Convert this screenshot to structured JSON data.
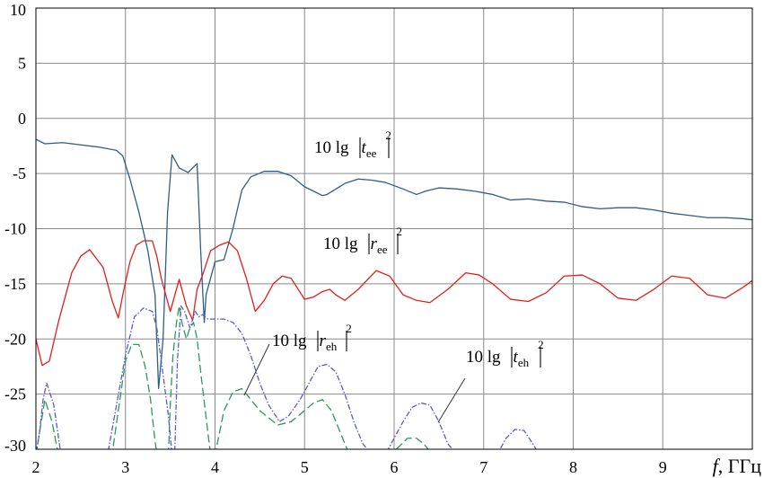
{
  "chart_data": {
    "type": "line",
    "title": "",
    "xlabel_italic": "f",
    "xlabel_rest": ", ГГц",
    "xlim": [
      2,
      10
    ],
    "ylim": [
      -30,
      10
    ],
    "xticks": [
      2,
      3,
      4,
      5,
      6,
      7,
      8,
      9
    ],
    "yticks": [
      10,
      5,
      0,
      -5,
      -10,
      -15,
      -20,
      -25,
      -30
    ],
    "grid": true,
    "series": [
      {
        "id": "tee",
        "color": "#2e5d87",
        "dash": "",
        "label": {
          "prefix": "10 lg",
          "var": "t",
          "sub": "ee",
          "sup": "2"
        },
        "x": [
          2.0,
          2.1,
          2.3,
          2.5,
          2.7,
          2.9,
          2.97,
          3.05,
          3.15,
          3.25,
          3.33,
          3.37,
          3.42,
          3.47,
          3.52,
          3.6,
          3.7,
          3.8,
          3.84,
          3.88,
          3.9,
          4.0,
          4.1,
          4.2,
          4.3,
          4.4,
          4.55,
          4.7,
          4.85,
          5.0,
          5.1,
          5.2,
          5.25,
          5.35,
          5.45,
          5.6,
          5.75,
          5.9,
          6.1,
          6.25,
          6.35,
          6.5,
          6.7,
          6.9,
          7.1,
          7.3,
          7.5,
          7.7,
          7.9,
          8.1,
          8.3,
          8.5,
          8.7,
          8.9,
          9.1,
          9.3,
          9.5,
          9.7,
          9.9,
          10.0
        ],
        "values": [
          -1.9,
          -2.3,
          -2.2,
          -2.4,
          -2.6,
          -2.9,
          -3.4,
          -5.5,
          -8.5,
          -12.0,
          -16.0,
          -24.5,
          -20.0,
          -8.5,
          -3.3,
          -4.5,
          -4.9,
          -4.1,
          -12.0,
          -18.5,
          -16.0,
          -13.0,
          -12.8,
          -10.0,
          -6.5,
          -5.3,
          -4.8,
          -4.8,
          -5.2,
          -6.2,
          -6.6,
          -7.0,
          -6.9,
          -6.4,
          -5.9,
          -5.5,
          -5.6,
          -5.8,
          -6.4,
          -6.9,
          -6.6,
          -6.3,
          -6.4,
          -6.6,
          -6.9,
          -7.4,
          -7.3,
          -7.5,
          -7.6,
          -8.0,
          -8.2,
          -8.1,
          -8.1,
          -8.3,
          -8.6,
          -8.8,
          -9.0,
          -9.0,
          -9.1,
          -9.2
        ]
      },
      {
        "id": "ree",
        "color": "#e0201c",
        "dash": "",
        "label": {
          "prefix": "10 lg",
          "var": "r",
          "sub": "ee",
          "sup": "2"
        },
        "x": [
          2.0,
          2.07,
          2.15,
          2.25,
          2.4,
          2.5,
          2.6,
          2.75,
          2.85,
          2.92,
          2.97,
          3.05,
          3.12,
          3.2,
          3.3,
          3.35,
          3.4,
          3.5,
          3.6,
          3.68,
          3.75,
          3.8,
          3.87,
          3.95,
          4.05,
          4.15,
          4.25,
          4.35,
          4.45,
          4.55,
          4.65,
          4.75,
          4.85,
          5.0,
          5.1,
          5.2,
          5.28,
          5.35,
          5.45,
          5.6,
          5.8,
          5.95,
          6.1,
          6.25,
          6.4,
          6.6,
          6.8,
          6.95,
          7.1,
          7.3,
          7.5,
          7.7,
          7.9,
          8.1,
          8.3,
          8.5,
          8.7,
          8.9,
          9.1,
          9.3,
          9.5,
          9.7,
          9.9,
          10.0
        ],
        "values": [
          -20.0,
          -22.4,
          -22.0,
          -18.5,
          -14.0,
          -12.5,
          -11.9,
          -13.5,
          -16.5,
          -18.1,
          -16.0,
          -13.0,
          -11.5,
          -11.1,
          -11.1,
          -12.5,
          -14.5,
          -17.5,
          -14.6,
          -17.0,
          -18.3,
          -15.5,
          -14.0,
          -12.0,
          -11.5,
          -11.2,
          -12.0,
          -14.5,
          -17.5,
          -16.5,
          -15.0,
          -14.3,
          -14.5,
          -16.4,
          -16.2,
          -15.7,
          -15.5,
          -16.0,
          -16.5,
          -15.5,
          -13.8,
          -14.3,
          -16.0,
          -16.5,
          -16.7,
          -15.5,
          -14.0,
          -14.2,
          -15.0,
          -16.4,
          -16.6,
          -15.8,
          -14.3,
          -14.2,
          -15.0,
          -16.3,
          -16.5,
          -15.5,
          -14.3,
          -14.5,
          -16.0,
          -16.3,
          -15.3,
          -14.7
        ]
      },
      {
        "id": "reh",
        "color": "#2a9a58",
        "dash": "9 4",
        "label": {
          "prefix": "10 lg",
          "var": "r",
          "sub": "eh",
          "sup": "2"
        },
        "x": [
          2.0,
          2.05,
          2.1,
          2.18,
          2.25,
          2.85,
          2.92,
          3.0,
          3.07,
          3.15,
          3.22,
          3.28,
          3.32,
          3.35,
          3.48,
          3.5,
          3.53,
          3.57,
          3.6,
          3.63,
          3.68,
          3.72,
          3.76,
          3.8,
          3.84,
          3.95,
          4.0,
          4.1,
          4.2,
          4.3,
          4.5,
          4.7,
          4.85,
          5.0,
          5.1,
          5.2,
          5.3,
          5.4,
          5.5,
          5.6,
          5.7,
          5.95,
          6.05,
          6.15,
          6.25,
          6.33,
          6.4,
          6.45
        ],
        "values": [
          -30.5,
          -28.0,
          -25.5,
          -27.5,
          -30.5,
          -30.5,
          -26.5,
          -22.0,
          -20.5,
          -20.5,
          -22.5,
          -25.5,
          -28.5,
          -30.5,
          -30.5,
          -26.0,
          -21.5,
          -18.5,
          -17.0,
          -18.5,
          -20.0,
          -19.0,
          -18.5,
          -20.0,
          -23.0,
          -30.5,
          -30.5,
          -26.5,
          -24.8,
          -24.5,
          -26.5,
          -27.8,
          -27.5,
          -26.5,
          -25.8,
          -25.5,
          -26.5,
          -28.5,
          -30.5,
          -30.5,
          -30.5,
          -30.5,
          -29.8,
          -29.0,
          -29.0,
          -29.5,
          -30.2,
          -30.5
        ]
      },
      {
        "id": "teh",
        "color": "#5a5ac8",
        "dash": "6 2 1.5 2",
        "label": {
          "prefix": "10 lg",
          "var": "t",
          "sub": "eh",
          "sup": "2"
        },
        "x": [
          2.0,
          2.04,
          2.08,
          2.12,
          2.2,
          2.28,
          2.8,
          2.9,
          3.0,
          3.1,
          3.2,
          3.3,
          3.35,
          3.4,
          3.48,
          3.52,
          3.55,
          3.58,
          3.62,
          3.66,
          3.72,
          3.78,
          3.82,
          3.86,
          3.92,
          4.0,
          4.1,
          4.2,
          4.3,
          4.4,
          4.5,
          4.6,
          4.72,
          4.82,
          4.95,
          5.05,
          5.15,
          5.25,
          5.35,
          5.45,
          5.55,
          5.65,
          5.75,
          5.9,
          6.0,
          6.1,
          6.2,
          6.3,
          6.4,
          6.5,
          6.6,
          6.7,
          7.15,
          7.25,
          7.35,
          7.45,
          7.55,
          7.62
        ],
        "values": [
          -30.5,
          -28.5,
          -25.5,
          -24.0,
          -26.0,
          -30.5,
          -30.5,
          -26.0,
          -21.5,
          -18.0,
          -17.2,
          -17.5,
          -19.0,
          -22.0,
          -27.0,
          -30.5,
          -30.5,
          -22.0,
          -17.0,
          -17.5,
          -19.0,
          -17.5,
          -18.0,
          -17.8,
          -18.2,
          -18.2,
          -18.2,
          -18.5,
          -19.5,
          -21.5,
          -24.0,
          -26.0,
          -27.5,
          -27.0,
          -25.5,
          -24.0,
          -22.5,
          -22.3,
          -23.0,
          -25.0,
          -27.5,
          -29.5,
          -30.5,
          -30.5,
          -29.0,
          -27.5,
          -26.2,
          -25.8,
          -26.0,
          -27.5,
          -29.5,
          -30.5,
          -30.5,
          -29.0,
          -28.2,
          -28.3,
          -29.5,
          -30.5
        ]
      }
    ]
  }
}
